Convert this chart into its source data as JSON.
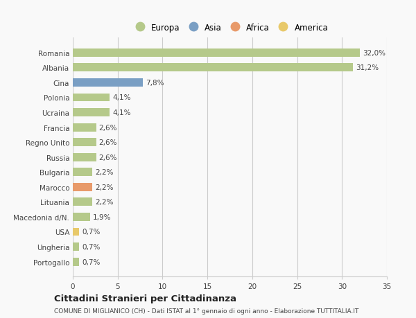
{
  "categories": [
    "Portogallo",
    "Ungheria",
    "USA",
    "Macedonia d/N.",
    "Lituania",
    "Marocco",
    "Bulgaria",
    "Russia",
    "Regno Unito",
    "Francia",
    "Ucraina",
    "Polonia",
    "Cina",
    "Albania",
    "Romania"
  ],
  "values": [
    0.7,
    0.7,
    0.7,
    1.9,
    2.2,
    2.2,
    2.2,
    2.6,
    2.6,
    2.6,
    4.1,
    4.1,
    7.8,
    31.2,
    32.0
  ],
  "labels": [
    "0,7%",
    "0,7%",
    "0,7%",
    "1,9%",
    "2,2%",
    "2,2%",
    "2,2%",
    "2,6%",
    "2,6%",
    "2,6%",
    "4,1%",
    "4,1%",
    "7,8%",
    "31,2%",
    "32,0%"
  ],
  "colors": [
    "#b5c98a",
    "#b5c98a",
    "#e8c96a",
    "#b5c98a",
    "#b5c98a",
    "#e89a6a",
    "#b5c98a",
    "#b5c98a",
    "#b5c98a",
    "#b5c98a",
    "#b5c98a",
    "#b5c98a",
    "#7a9fc4",
    "#b5c98a",
    "#b5c98a"
  ],
  "legend_labels": [
    "Europa",
    "Asia",
    "Africa",
    "America"
  ],
  "legend_colors": [
    "#b5c98a",
    "#7a9fc4",
    "#e89a6a",
    "#e8c96a"
  ],
  "xlim": [
    0,
    35
  ],
  "xticks": [
    0,
    5,
    10,
    15,
    20,
    25,
    30,
    35
  ],
  "title": "Cittadini Stranieri per Cittadinanza",
  "subtitle": "COMUNE DI MIGLIANICO (CH) - Dati ISTAT al 1° gennaio di ogni anno - Elaborazione TUTTITALIA.IT",
  "bg_color": "#f9f9f9",
  "bar_height": 0.55,
  "grid_color": "#cccccc",
  "text_color": "#444444"
}
